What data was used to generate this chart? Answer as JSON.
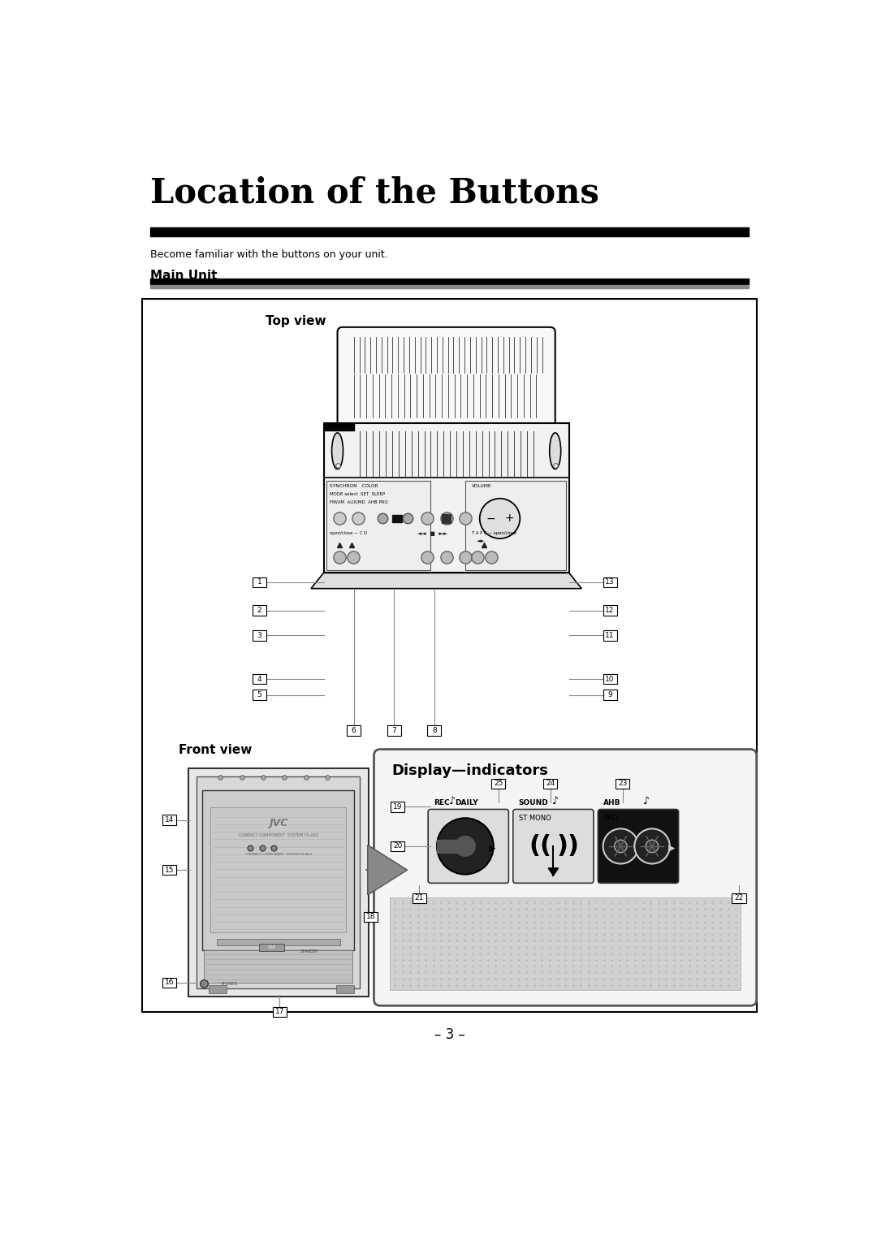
{
  "title": "Location of the Buttons",
  "subtitle": "Become familiar with the buttons on your unit.",
  "section": "Main Unit",
  "top_view_label": "Top view",
  "front_view_label": "Front view",
  "display_label": "Display—indicators",
  "page_number": "– 3 –",
  "bg_color": "#ffffff"
}
